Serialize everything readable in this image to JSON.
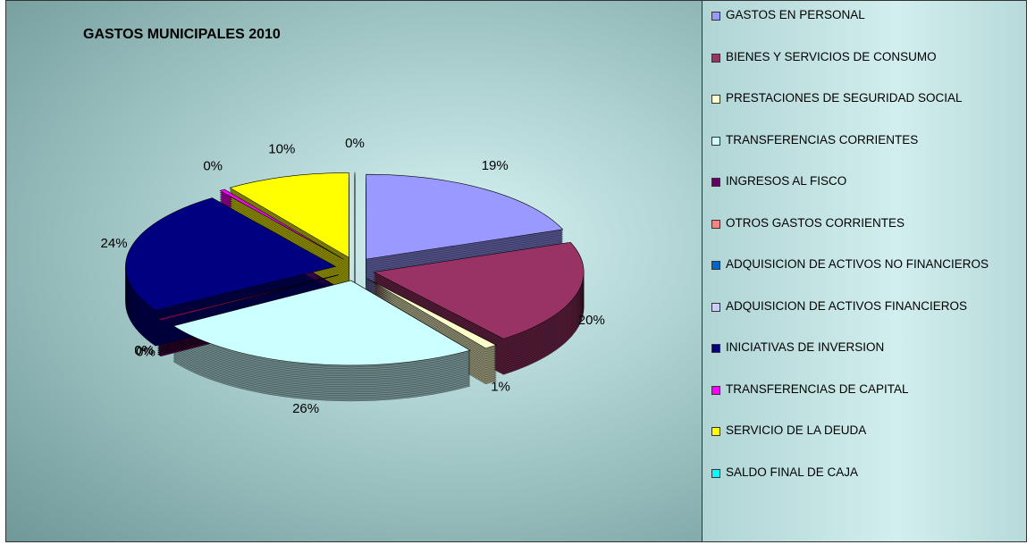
{
  "chart_data": {
    "type": "pie",
    "title": "GASTOS MUNICIPALES 2010",
    "categories": [
      "GASTOS EN PERSONAL",
      "BIENES Y SERVICIOS DE CONSUMO",
      "PRESTACIONES DE SEGURIDAD SOCIAL",
      "TRANSFERENCIAS CORRIENTES",
      "INGRESOS AL FISCO",
      "OTROS GASTOS CORRIENTES",
      "ADQUISICION DE ACTIVOS NO FINANCIEROS",
      "ADQUISICION DE ACTIVOS FINANCIEROS",
      "INICIATIVAS DE INVERSION",
      "TRANSFERENCIAS DE CAPITAL",
      "SERVICIO DE LA DEUDA",
      "SALDO FINAL DE CAJA"
    ],
    "values": [
      19.3,
      20.1,
      1.0,
      25.6,
      0.4,
      0,
      0,
      0,
      23.6,
      0.4,
      9.6,
      0
    ],
    "value_labels": [
      "19%",
      "20%",
      "1%",
      "26%",
      "0%",
      "0%",
      "0%",
      "0%",
      "24%",
      "0%",
      "10%",
      "0%"
    ],
    "colors": [
      "#9999ff",
      "#993366",
      "#ffffcc",
      "#ccffff",
      "#660066",
      "#ff8080",
      "#0066cc",
      "#ccccff",
      "#000080",
      "#ff00ff",
      "#ffff00",
      "#00ffff"
    ],
    "legend": "right"
  }
}
